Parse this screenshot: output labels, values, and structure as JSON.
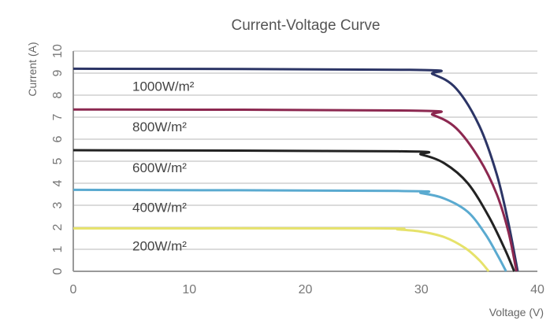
{
  "chart_data": {
    "type": "line",
    "title": "Current-Voltage Curve",
    "xlabel": "Voltage (V)",
    "ylabel": "Current (A)",
    "xlim": [
      0,
      40
    ],
    "ylim": [
      0,
      10
    ],
    "x_ticks": [
      "0",
      "10",
      "20",
      "30",
      "40"
    ],
    "y_ticks": [
      "0",
      "1",
      "2",
      "3",
      "4",
      "5",
      "6",
      "7",
      "8",
      "9",
      "10"
    ],
    "grid": "horizontal",
    "series": [
      {
        "name": "1000W/m²",
        "color": "#2c3566",
        "points": [
          [
            0,
            9.2
          ],
          [
            29,
            9.15
          ],
          [
            31,
            8.95
          ],
          [
            33,
            8.3
          ],
          [
            35,
            6.6
          ],
          [
            36.5,
            4.4
          ],
          [
            37.5,
            2.2
          ],
          [
            38.3,
            0
          ]
        ]
      },
      {
        "name": "800W/m²",
        "color": "#8c2850",
        "points": [
          [
            0,
            7.35
          ],
          [
            29,
            7.3
          ],
          [
            31,
            7.1
          ],
          [
            33,
            6.5
          ],
          [
            35,
            5.1
          ],
          [
            36.5,
            3.5
          ],
          [
            37.5,
            1.8
          ],
          [
            38.2,
            0
          ]
        ]
      },
      {
        "name": "600W/m²",
        "color": "#222222",
        "points": [
          [
            0,
            5.5
          ],
          [
            28,
            5.45
          ],
          [
            30,
            5.3
          ],
          [
            32,
            4.9
          ],
          [
            34,
            4.0
          ],
          [
            35.8,
            2.5
          ],
          [
            37.2,
            1.0
          ],
          [
            38,
            0
          ]
        ]
      },
      {
        "name": "400W/m²",
        "color": "#5aaad0",
        "points": [
          [
            0,
            3.7
          ],
          [
            28,
            3.65
          ],
          [
            30,
            3.55
          ],
          [
            32,
            3.3
          ],
          [
            34,
            2.7
          ],
          [
            35.5,
            1.7
          ],
          [
            36.6,
            0.7
          ],
          [
            37.3,
            0
          ]
        ]
      },
      {
        "name": "200W/m²",
        "color": "#e6e26a",
        "points": [
          [
            0,
            1.95
          ],
          [
            26,
            1.95
          ],
          [
            28,
            1.9
          ],
          [
            30,
            1.8
          ],
          [
            32,
            1.55
          ],
          [
            33.8,
            1.05
          ],
          [
            35,
            0.5
          ],
          [
            35.8,
            0
          ]
        ]
      }
    ]
  }
}
